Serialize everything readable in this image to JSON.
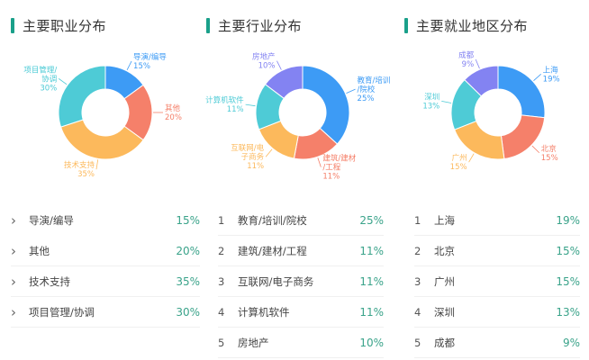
{
  "sections": [
    {
      "title": "主要职业分布",
      "list_style": "chevron",
      "items": [
        {
          "name": "导演/编导",
          "pct": "15%"
        },
        {
          "name": "其他",
          "pct": "20%"
        },
        {
          "name": "技术支持",
          "pct": "35%"
        },
        {
          "name": "项目管理/协调",
          "pct": "30%"
        }
      ]
    },
    {
      "title": "主要行业分布",
      "list_style": "numbered",
      "items": [
        {
          "rank": "1",
          "name": "教育/培训/院校",
          "pct": "25%"
        },
        {
          "rank": "2",
          "name": "建筑/建材/工程",
          "pct": "11%"
        },
        {
          "rank": "3",
          "name": "互联网/电子商务",
          "pct": "11%"
        },
        {
          "rank": "4",
          "name": "计算机软件",
          "pct": "11%"
        },
        {
          "rank": "5",
          "name": "房地产",
          "pct": "10%"
        }
      ]
    },
    {
      "title": "主要就业地区分布",
      "list_style": "numbered",
      "items": [
        {
          "rank": "1",
          "name": "上海",
          "pct": "19%"
        },
        {
          "rank": "2",
          "name": "北京",
          "pct": "15%"
        },
        {
          "rank": "3",
          "name": "广州",
          "pct": "15%"
        },
        {
          "rank": "4",
          "name": "深圳",
          "pct": "13%"
        },
        {
          "rank": "5",
          "name": "成都",
          "pct": "9%"
        }
      ]
    }
  ],
  "colors": {
    "accent": "#1aa08a",
    "blue": "#3d9bf5",
    "red": "#f5806a",
    "orange": "#fcb95c",
    "cyan": "#4ecbd6",
    "purple": "#8383f2"
  },
  "chart_data": [
    {
      "type": "pie",
      "title": "主要职业分布",
      "donut": true,
      "categories": [
        "导演/编导",
        "其他",
        "技术支持",
        "项目管理/协调"
      ],
      "values": [
        15,
        20,
        35,
        30
      ],
      "colors": [
        "#3d9bf5",
        "#f5806a",
        "#fcb95c",
        "#4ecbd6"
      ]
    },
    {
      "type": "pie",
      "title": "主要行业分布",
      "donut": true,
      "categories": [
        "教育/培训/院校",
        "建筑/建材/工程",
        "互联网/电子商务",
        "计算机软件",
        "房地产"
      ],
      "values": [
        25,
        11,
        11,
        11,
        10
      ],
      "colors": [
        "#3d9bf5",
        "#f5806a",
        "#fcb95c",
        "#4ecbd6",
        "#8383f2"
      ]
    },
    {
      "type": "pie",
      "title": "主要就业地区分布",
      "donut": true,
      "categories": [
        "上海",
        "北京",
        "广州",
        "深圳",
        "成都"
      ],
      "values": [
        19,
        15,
        15,
        13,
        9
      ],
      "colors": [
        "#3d9bf5",
        "#f5806a",
        "#fcb95c",
        "#4ecbd6",
        "#8383f2"
      ]
    }
  ]
}
